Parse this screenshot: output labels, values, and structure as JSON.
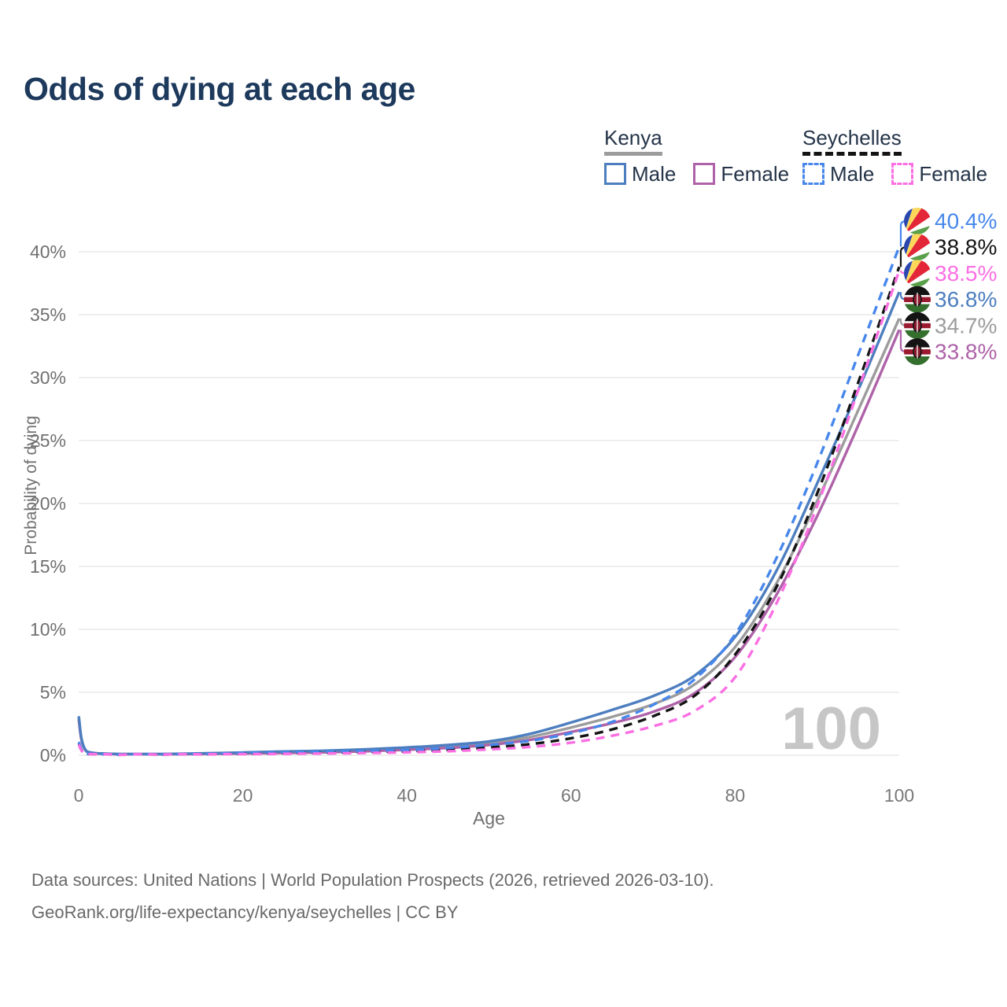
{
  "title": "Odds of dying at each age",
  "legend": {
    "groups": [
      {
        "label": "Kenya",
        "line_style": "solid",
        "items": [
          {
            "label": "Male",
            "series_id": "kenya-male"
          },
          {
            "label": "Female",
            "series_id": "kenya-female"
          }
        ]
      },
      {
        "label": "Seychelles",
        "line_style": "dashed",
        "items": [
          {
            "label": "Male",
            "series_id": "seychelles-male"
          },
          {
            "label": "Female",
            "series_id": "seychelles-female"
          }
        ]
      }
    ]
  },
  "footer": {
    "line1": "Data sources: United Nations | World Population Prospects (2026, retrieved 2026-03-10).",
    "line2": "GeoRank.org/life-expectancy/kenya/seychelles | CC BY"
  },
  "chart_data": {
    "type": "line",
    "title": "Odds of dying at each age",
    "xlabel": "Age",
    "ylabel": "Probability of dying",
    "xlim": [
      0,
      100
    ],
    "ylim": [
      0,
      43
    ],
    "xticks": [
      "0",
      "20",
      "40",
      "60",
      "80",
      "100"
    ],
    "yticks": [
      "0%",
      "5%",
      "10%",
      "15%",
      "20%",
      "25%",
      "30%",
      "35%",
      "40%"
    ],
    "grid": "horizontal",
    "legend_position": "top-right",
    "age_watermark": "100",
    "x": [
      0,
      1,
      5,
      10,
      15,
      20,
      25,
      30,
      35,
      40,
      45,
      50,
      55,
      60,
      65,
      70,
      75,
      80,
      85,
      90,
      95,
      100
    ],
    "series": [
      {
        "id": "kenya-all",
        "name": "Kenya (both sexes)",
        "country": "Kenya",
        "flag": "kenya",
        "color": "#9c9c9c",
        "dashed": false,
        "end_label": "34.7%",
        "values": [
          2.95,
          0.29,
          0.09,
          0.09,
          0.12,
          0.18,
          0.24,
          0.3,
          0.4,
          0.52,
          0.7,
          0.95,
          1.45,
          2.2,
          3.05,
          4.05,
          5.6,
          8.6,
          13.6,
          20.2,
          27.4,
          34.7
        ]
      },
      {
        "id": "kenya-female",
        "name": "Kenya Female",
        "country": "Kenya",
        "flag": "kenya",
        "color": "#ae62a8",
        "dashed": false,
        "end_label": "33.8%",
        "values": [
          2.8,
          0.28,
          0.08,
          0.08,
          0.1,
          0.14,
          0.18,
          0.23,
          0.32,
          0.44,
          0.58,
          0.82,
          1.22,
          1.85,
          2.55,
          3.45,
          4.9,
          7.8,
          12.7,
          19.0,
          26.2,
          33.8
        ]
      },
      {
        "id": "kenya-male",
        "name": "Kenya Male",
        "country": "Kenya",
        "flag": "kenya",
        "color": "#4d7ebf",
        "dashed": false,
        "end_label": "36.8%",
        "values": [
          3.1,
          0.3,
          0.1,
          0.1,
          0.15,
          0.22,
          0.3,
          0.36,
          0.47,
          0.62,
          0.82,
          1.1,
          1.7,
          2.6,
          3.6,
          4.7,
          6.3,
          9.4,
          14.6,
          21.6,
          29.0,
          36.8
        ]
      },
      {
        "id": "seychelles-all",
        "name": "Seychelles (both sexes)",
        "country": "Seychelles",
        "flag": "seychelles",
        "color": "#141414",
        "dashed": true,
        "end_label": "38.8%",
        "values": [
          0.95,
          0.1,
          0.04,
          0.05,
          0.08,
          0.13,
          0.17,
          0.21,
          0.26,
          0.32,
          0.44,
          0.62,
          0.88,
          1.35,
          2.05,
          3.1,
          4.7,
          8.0,
          13.3,
          20.8,
          29.6,
          38.8
        ]
      },
      {
        "id": "seychelles-male",
        "name": "Seychelles Male",
        "country": "Seychelles",
        "flag": "seychelles",
        "color": "#4787ec",
        "dashed": true,
        "end_label": "40.4%",
        "values": [
          1.05,
          0.12,
          0.05,
          0.06,
          0.1,
          0.18,
          0.24,
          0.28,
          0.33,
          0.42,
          0.58,
          0.82,
          1.15,
          1.75,
          2.65,
          4.0,
          6.0,
          9.6,
          15.6,
          23.2,
          31.8,
          40.4
        ]
      },
      {
        "id": "seychelles-female",
        "name": "Seychelles Female",
        "country": "Seychelles",
        "flag": "seychelles",
        "color": "#fb6fe3",
        "dashed": true,
        "end_label": "38.5%",
        "values": [
          0.85,
          0.09,
          0.03,
          0.04,
          0.06,
          0.09,
          0.11,
          0.14,
          0.18,
          0.23,
          0.32,
          0.46,
          0.66,
          1.0,
          1.55,
          2.3,
          3.5,
          6.2,
          12.0,
          19.8,
          29.0,
          38.5
        ]
      }
    ]
  }
}
